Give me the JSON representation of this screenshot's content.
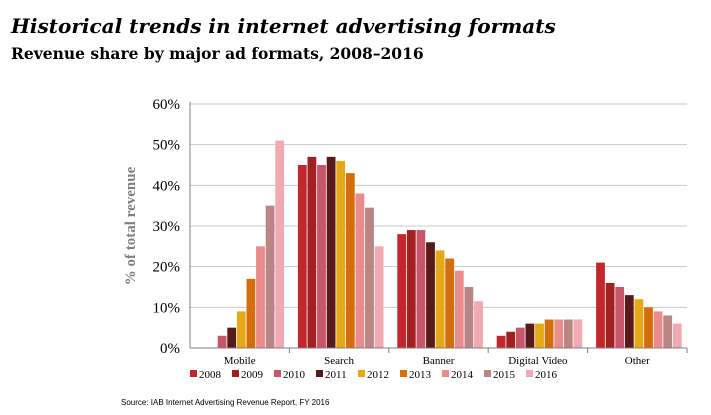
{
  "header": {
    "title": "Historical trends in internet advertising formats",
    "subtitle": "Revenue share by major ad formats, 2008–2016"
  },
  "source": "Source: IAB Internet Advertising Revenue Report, FY 2016",
  "chart_data": {
    "type": "bar",
    "title": "Historical trends in internet advertising formats",
    "subtitle": "Revenue share by major ad formats, 2008–2016",
    "xlabel": "",
    "ylabel": "% of total revenue",
    "ylim": [
      0,
      60
    ],
    "yticks": [
      0,
      10,
      20,
      30,
      40,
      50,
      60
    ],
    "ytick_labels": [
      "0%",
      "10%",
      "20%",
      "30%",
      "40%",
      "50%",
      "60%"
    ],
    "grid": true,
    "legend_position": "bottom",
    "categories": [
      "Mobile",
      "Search",
      "Banner",
      "Digital Video",
      "Other"
    ],
    "series": [
      {
        "name": "2008",
        "color": "#c1272d",
        "values": [
          0,
          45,
          28,
          3,
          21
        ]
      },
      {
        "name": "2009",
        "color": "#a32020",
        "values": [
          0,
          47,
          29,
          4,
          16
        ]
      },
      {
        "name": "2010",
        "color": "#c8566b",
        "values": [
          3,
          45,
          29,
          5,
          15
        ]
      },
      {
        "name": "2011",
        "color": "#5a1a1a",
        "values": [
          5,
          47,
          26,
          6,
          13
        ]
      },
      {
        "name": "2012",
        "color": "#e6a817",
        "values": [
          9,
          46,
          24,
          6,
          12
        ]
      },
      {
        "name": "2013",
        "color": "#d46d0b",
        "values": [
          17,
          43,
          22,
          7,
          10
        ]
      },
      {
        "name": "2014",
        "color": "#ea8c8c",
        "values": [
          25,
          38,
          19,
          7,
          9
        ]
      },
      {
        "name": "2015",
        "color": "#b98585",
        "values": [
          35,
          34.5,
          15,
          7,
          8
        ]
      },
      {
        "name": "2016",
        "color": "#f1a9b4",
        "values": [
          51,
          25,
          11.5,
          7,
          6
        ]
      }
    ]
  }
}
